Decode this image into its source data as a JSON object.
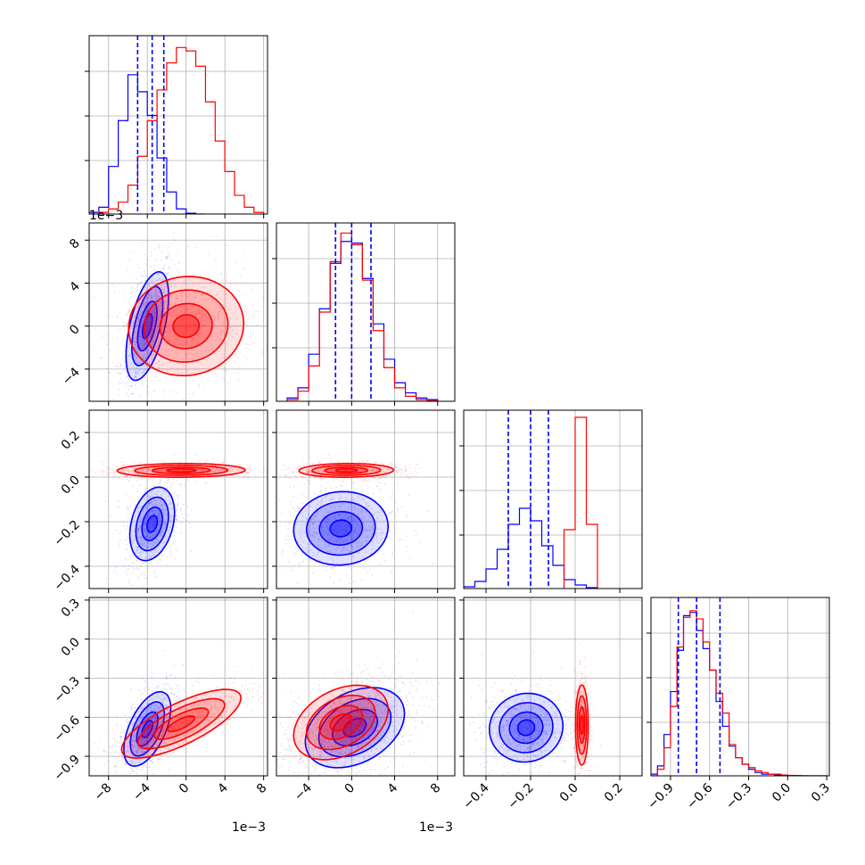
{
  "chart_data": {
    "type": "corner",
    "title": "",
    "series": [
      {
        "name": "",
        "color": "#0000ff"
      },
      {
        "name": "",
        "color": "#ff0000"
      }
    ],
    "grid": true,
    "quantile_lines": {
      "color": "#0000ff",
      "style": "dashed"
    },
    "params": [
      {
        "ticks": [
          -8,
          -4,
          0,
          4,
          8
        ],
        "tick_labels": [
          "−8",
          "−4",
          "0",
          "4",
          "8"
        ],
        "range": [
          -10,
          8.4
        ],
        "offset_label": "1e−3"
      },
      {
        "ticks": [
          -4,
          0,
          4,
          8
        ],
        "tick_labels": [
          "−4",
          "0",
          "4",
          "8"
        ],
        "range": [
          -7,
          9.6
        ],
        "offset_label": "1e−3"
      },
      {
        "ticks": [
          -0.4,
          -0.2,
          0.0,
          0.2
        ],
        "tick_labels": [
          "−0.4",
          "−0.2",
          "0.0",
          "0.2"
        ],
        "range": [
          -0.5,
          0.3
        ]
      },
      {
        "ticks": [
          -0.9,
          -0.6,
          -0.3,
          0.0,
          0.3
        ],
        "tick_labels": [
          "−0.9",
          "−0.6",
          "−0.3",
          "0.0",
          "0.3"
        ],
        "range": [
          -1.05,
          0.32
        ]
      }
    ],
    "y_axis_labels": [
      null,
      {
        "ticks": [
          -4,
          0,
          4,
          8
        ],
        "tick_labels": [
          "−4",
          "0",
          "4",
          "8"
        ],
        "offset_label": "1e−3"
      },
      {
        "ticks": [
          -0.4,
          -0.2,
          0.0,
          0.2
        ],
        "tick_labels": [
          "−0.4",
          "−0.2",
          "0.0",
          "0.2"
        ]
      },
      {
        "ticks": [
          -0.9,
          -0.6,
          -0.3,
          0.0,
          0.3
        ],
        "tick_labels": [
          "−0.9",
          "−0.6",
          "−0.3",
          "0.0",
          "0.3"
        ]
      }
    ],
    "marginals": [
      {
        "blue": {
          "centers": [
            -9.5,
            -8.5,
            -7.5,
            -6.5,
            -5.5,
            -4.5,
            -3.5,
            -2.5,
            -1.5,
            -0.5,
            0.5,
            1.5
          ],
          "values": [
            0.01,
            0.04,
            0.28,
            0.55,
            0.82,
            0.72,
            0.58,
            0.33,
            0.13,
            0.03,
            0.005,
            0.0
          ]
        },
        "red": {
          "centers": [
            -9.5,
            -8.5,
            -7.5,
            -6.5,
            -5.5,
            -4.5,
            -3.5,
            -2.5,
            -1.5,
            -0.5,
            0.5,
            1.5,
            2.5,
            3.5,
            4.5,
            5.5,
            6.5,
            7.5
          ],
          "values": [
            0.0,
            0.01,
            0.03,
            0.07,
            0.17,
            0.34,
            0.55,
            0.73,
            0.89,
            0.98,
            0.96,
            0.87,
            0.66,
            0.43,
            0.25,
            0.11,
            0.04,
            0.01
          ]
        },
        "quantiles": [
          -5.0,
          -3.5,
          -2.3
        ],
        "vmax": 1.05
      },
      {
        "blue": {
          "centers": [
            -5.5,
            -4.5,
            -3.5,
            -2.5,
            -1.5,
            -0.5,
            0.5,
            1.5,
            2.5,
            3.5,
            4.5,
            5.5,
            6.5,
            7.5
          ],
          "values": [
            0.02,
            0.08,
            0.28,
            0.55,
            0.82,
            0.95,
            0.94,
            0.73,
            0.46,
            0.25,
            0.11,
            0.05,
            0.02,
            0.01
          ]
        },
        "red": {
          "centers": [
            -5.5,
            -4.5,
            -3.5,
            -2.5,
            -1.5,
            -0.5,
            0.5,
            1.5,
            2.5,
            3.5,
            4.5,
            5.5,
            6.5,
            7.5
          ],
          "values": [
            0.01,
            0.06,
            0.21,
            0.53,
            0.83,
            1.0,
            0.93,
            0.72,
            0.42,
            0.2,
            0.08,
            0.03,
            0.01,
            0.005
          ]
        },
        "quantiles": [
          -1.5,
          0.0,
          1.8
        ],
        "vmax": 1.06
      },
      {
        "blue": {
          "centers": [
            -0.475,
            -0.425,
            -0.375,
            -0.325,
            -0.275,
            -0.225,
            -0.175,
            -0.125,
            -0.075,
            -0.025,
            0.025,
            0.075
          ],
          "values": [
            0.01,
            0.04,
            0.11,
            0.22,
            0.36,
            0.45,
            0.38,
            0.24,
            0.13,
            0.05,
            0.02,
            0.005
          ]
        },
        "red": {
          "centers": [
            -0.025,
            0.025,
            0.075
          ],
          "values": [
            0.33,
            0.96,
            0.36
          ]
        },
        "quantiles": [
          -0.3,
          -0.2,
          -0.12
        ],
        "vmax": 1.0
      },
      {
        "blue": {
          "centers": [
            -1.025,
            -0.975,
            -0.925,
            -0.875,
            -0.825,
            -0.775,
            -0.725,
            -0.675,
            -0.625,
            -0.575,
            -0.525,
            -0.475,
            -0.425,
            -0.375,
            -0.325,
            -0.275,
            -0.225,
            -0.175,
            -0.125,
            -0.075,
            -0.025,
            0.025,
            0.075,
            0.125,
            0.175,
            0.225,
            0.275
          ],
          "values": [
            0.01,
            0.06,
            0.25,
            0.51,
            0.76,
            0.97,
            0.99,
            0.88,
            0.77,
            0.64,
            0.45,
            0.3,
            0.18,
            0.11,
            0.07,
            0.04,
            0.02,
            0.01,
            0.01,
            0.005,
            0.003,
            0.002,
            0.0,
            0.0,
            0.0,
            0.0,
            0.0
          ]
        },
        "red": {
          "centers": [
            -1.025,
            -0.975,
            -0.925,
            -0.875,
            -0.825,
            -0.775,
            -0.725,
            -0.675,
            -0.625,
            -0.575,
            -0.525,
            -0.475,
            -0.425,
            -0.375,
            -0.325,
            -0.275,
            -0.225,
            -0.175,
            -0.125,
            -0.075,
            -0.025,
            0.025,
            0.075,
            0.125,
            0.175,
            0.225,
            0.275
          ],
          "values": [
            0.0,
            0.04,
            0.17,
            0.42,
            0.78,
            0.96,
            1.0,
            0.95,
            0.81,
            0.64,
            0.5,
            0.38,
            0.19,
            0.11,
            0.07,
            0.05,
            0.03,
            0.02,
            0.01,
            0.01,
            0.005,
            0.003,
            0.002,
            0.001,
            0.0,
            0.0,
            0.0
          ]
        },
        "quantiles": [
          -0.84,
          -0.7,
          -0.52
        ],
        "vmax": 1.08
      }
    ],
    "joint": [
      {
        "row": 1,
        "col": 0,
        "blue": {
          "center": [
            -4.0,
            0.0
          ],
          "sd": [
            1.0,
            2.3
          ],
          "rho": 0.55
        },
        "red": {
          "center": [
            0.0,
            0.0
          ],
          "sd": [
            2.7,
            2.1
          ],
          "rho": 0.05
        }
      },
      {
        "row": 2,
        "col": 0,
        "blue": {
          "center": [
            -3.5,
            -0.21
          ],
          "sd": [
            1.05,
            0.075
          ],
          "rho": 0.3
        },
        "red": {
          "center": [
            -0.5,
            0.03
          ],
          "sd": [
            3.0,
            0.014
          ],
          "rho": 0.05
        }
      },
      {
        "row": 2,
        "col": 1,
        "blue": {
          "center": [
            -1.0,
            -0.23
          ],
          "sd": [
            2.0,
            0.075
          ],
          "rho": 0.05
        },
        "red": {
          "center": [
            -0.5,
            0.03
          ],
          "sd": [
            2.0,
            0.014
          ],
          "rho": 0.05
        }
      },
      {
        "row": 3,
        "col": 0,
        "blue": {
          "center": [
            -4.0,
            -0.69
          ],
          "sd": [
            1.1,
            0.13
          ],
          "rho": 0.55
        },
        "red": {
          "center": [
            -0.5,
            -0.65
          ],
          "sd": [
            2.8,
            0.12
          ],
          "rho": 0.75
        }
      },
      {
        "row": 3,
        "col": 1,
        "blue": {
          "center": [
            0.3,
            -0.68
          ],
          "sd": [
            2.1,
            0.14
          ],
          "rho": 0.35
        },
        "red": {
          "center": [
            -1.0,
            -0.64
          ],
          "sd": [
            2.0,
            0.13
          ],
          "rho": 0.35
        }
      },
      {
        "row": 3,
        "col": 2,
        "blue": {
          "center": [
            -0.22,
            -0.68
          ],
          "sd": [
            0.075,
            0.12
          ],
          "rho": 0.05
        },
        "red": {
          "center": [
            0.03,
            -0.66
          ],
          "sd": [
            0.013,
            0.14
          ],
          "rho": 0.0
        }
      }
    ]
  }
}
